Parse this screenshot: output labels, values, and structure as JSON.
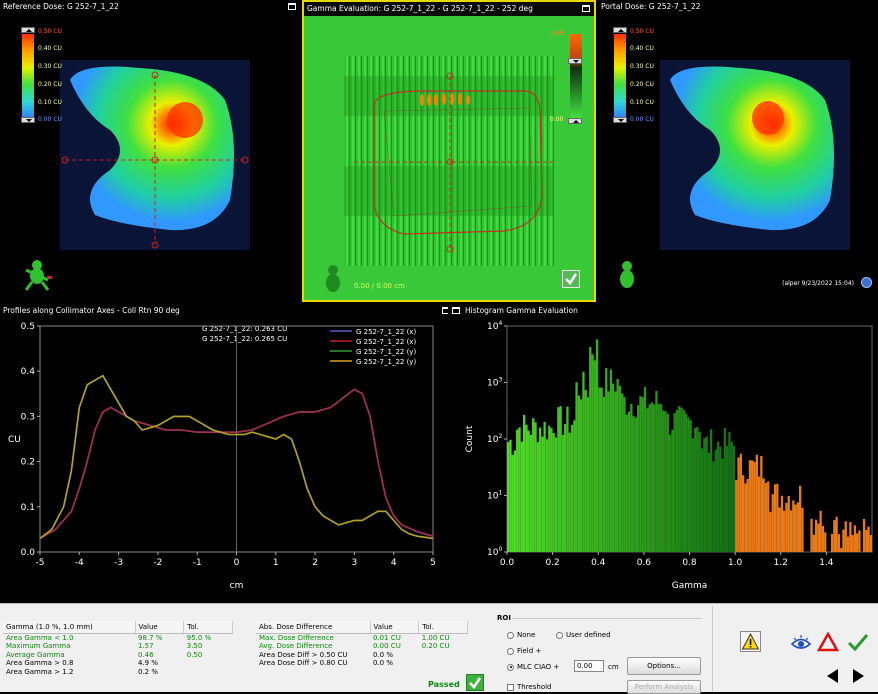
{
  "panels": {
    "reference": {
      "title": "Reference Dose: G 252-7_1_22",
      "cbar_labels": [
        "0.50 CU",
        "0.40 CU",
        "0.30 CU",
        "0.20 CU",
        "0.10 CU",
        "0.00 CU"
      ]
    },
    "gamma": {
      "title": "Gamma Evaluation: G 252-7_1_22 - G 252-7_1_22 - 252 deg",
      "cbar_top": "1.00",
      "cbar_bottom": "0.00",
      "coords": "0.00 / 0.00 cm"
    },
    "portal": {
      "title": "Portal Dose: G 252-7_1_22",
      "cbar_labels": [
        "0.50 CU",
        "0.40 CU",
        "0.30 CU",
        "0.20 CU",
        "0.10 CU",
        "0.00 CU"
      ],
      "footer": "(alper 9/23/2022 15:04)"
    },
    "profiles": {
      "title": "Profiles along Collimator Axes - Coll Rtn 90 deg"
    },
    "histogram": {
      "title": "Histogram Gamma Evaluation"
    }
  },
  "profile_readout": [
    "G 252-7_1_22: 0.263 CU",
    "G 252-7_1_22: 0.265 CU"
  ],
  "chart_data": [
    {
      "type": "line",
      "xlabel": "cm",
      "ylabel": "CU",
      "xlim": [
        -5,
        5
      ],
      "ylim": [
        0,
        0.5
      ],
      "x_ticks": [
        -5,
        -4,
        -3,
        -2,
        -1,
        0,
        1,
        2,
        3,
        4,
        5
      ],
      "y_ticks": [
        0.0,
        0.1,
        0.2,
        0.3,
        0.4,
        0.5
      ],
      "legend": "top-right",
      "series": [
        {
          "name": "G 252-7_1_22 (x)",
          "color": "#5a5ac8",
          "x": [
            -5,
            -4.6,
            -4.2,
            -4.0,
            -3.8,
            -3.6,
            -3.4,
            -3.2,
            -3.0,
            -2.6,
            -2.2,
            -1.8,
            -1.4,
            -1.0,
            -0.6,
            -0.2,
            0,
            0.4,
            0.8,
            1.2,
            1.6,
            2.0,
            2.4,
            2.7,
            3.0,
            3.2,
            3.4,
            3.6,
            3.8,
            4.0,
            4.2,
            4.6,
            5.0
          ],
          "y": [
            0.03,
            0.05,
            0.09,
            0.14,
            0.2,
            0.27,
            0.31,
            0.32,
            0.31,
            0.29,
            0.28,
            0.27,
            0.27,
            0.265,
            0.265,
            0.265,
            0.265,
            0.27,
            0.285,
            0.3,
            0.31,
            0.31,
            0.32,
            0.34,
            0.36,
            0.35,
            0.3,
            0.2,
            0.12,
            0.08,
            0.06,
            0.045,
            0.035
          ]
        },
        {
          "name": "G 252-7_1_22 (x)",
          "color": "#c02020",
          "x": [
            -5,
            -4.6,
            -4.2,
            -4.0,
            -3.8,
            -3.6,
            -3.4,
            -3.2,
            -3.0,
            -2.6,
            -2.2,
            -1.8,
            -1.4,
            -1.0,
            -0.6,
            -0.2,
            0,
            0.4,
            0.8,
            1.2,
            1.6,
            2.0,
            2.4,
            2.7,
            3.0,
            3.2,
            3.4,
            3.6,
            3.8,
            4.0,
            4.2,
            4.6,
            5.0
          ],
          "y": [
            0.03,
            0.05,
            0.09,
            0.14,
            0.2,
            0.27,
            0.31,
            0.32,
            0.31,
            0.29,
            0.28,
            0.27,
            0.27,
            0.265,
            0.265,
            0.265,
            0.265,
            0.27,
            0.285,
            0.3,
            0.31,
            0.31,
            0.32,
            0.34,
            0.36,
            0.35,
            0.3,
            0.2,
            0.12,
            0.08,
            0.06,
            0.045,
            0.035
          ]
        },
        {
          "name": "G 252-7_1_22 (y)",
          "color": "#3a9a3a",
          "x": [
            -5,
            -4.7,
            -4.4,
            -4.2,
            -4.0,
            -3.8,
            -3.6,
            -3.4,
            -3.2,
            -3.0,
            -2.8,
            -2.6,
            -2.4,
            -2.2,
            -2.0,
            -1.8,
            -1.6,
            -1.4,
            -1.2,
            -1.0,
            -0.8,
            -0.6,
            -0.4,
            -0.2,
            0,
            0.2,
            0.4,
            0.6,
            0.8,
            1.0,
            1.2,
            1.4,
            1.6,
            1.8,
            2.0,
            2.2,
            2.4,
            2.6,
            2.8,
            3.0,
            3.2,
            3.4,
            3.6,
            3.8,
            4.0,
            4.2,
            4.4,
            4.6,
            5.0
          ],
          "y": [
            0.03,
            0.05,
            0.1,
            0.18,
            0.32,
            0.37,
            0.38,
            0.39,
            0.36,
            0.33,
            0.3,
            0.29,
            0.27,
            0.275,
            0.28,
            0.29,
            0.3,
            0.3,
            0.3,
            0.29,
            0.28,
            0.27,
            0.265,
            0.26,
            0.26,
            0.26,
            0.265,
            0.26,
            0.255,
            0.25,
            0.26,
            0.25,
            0.2,
            0.14,
            0.1,
            0.08,
            0.07,
            0.06,
            0.065,
            0.07,
            0.07,
            0.08,
            0.09,
            0.09,
            0.07,
            0.05,
            0.04,
            0.035,
            0.03
          ]
        },
        {
          "name": "G 252-7_1_22 (y)",
          "color": "#e0a020",
          "x": [
            -5,
            -4.7,
            -4.4,
            -4.2,
            -4.0,
            -3.8,
            -3.6,
            -3.4,
            -3.2,
            -3.0,
            -2.8,
            -2.6,
            -2.4,
            -2.2,
            -2.0,
            -1.8,
            -1.6,
            -1.4,
            -1.2,
            -1.0,
            -0.8,
            -0.6,
            -0.4,
            -0.2,
            0,
            0.2,
            0.4,
            0.6,
            0.8,
            1.0,
            1.2,
            1.4,
            1.6,
            1.8,
            2.0,
            2.2,
            2.4,
            2.6,
            2.8,
            3.0,
            3.2,
            3.4,
            3.6,
            3.8,
            4.0,
            4.2,
            4.4,
            4.6,
            5.0
          ],
          "y": [
            0.03,
            0.05,
            0.1,
            0.18,
            0.32,
            0.37,
            0.38,
            0.39,
            0.36,
            0.33,
            0.3,
            0.29,
            0.27,
            0.275,
            0.28,
            0.29,
            0.3,
            0.3,
            0.3,
            0.29,
            0.28,
            0.27,
            0.265,
            0.26,
            0.26,
            0.26,
            0.265,
            0.26,
            0.255,
            0.25,
            0.26,
            0.25,
            0.2,
            0.14,
            0.1,
            0.08,
            0.07,
            0.06,
            0.065,
            0.07,
            0.07,
            0.08,
            0.09,
            0.09,
            0.07,
            0.05,
            0.04,
            0.035,
            0.03
          ]
        }
      ]
    },
    {
      "type": "bar",
      "xlabel": "Gamma",
      "ylabel": "Count",
      "xlim": [
        0,
        1.6
      ],
      "ylim_log10": [
        0,
        4
      ],
      "y_scale": "log",
      "x_ticks": [
        0.0,
        0.2,
        0.4,
        0.6,
        0.8,
        1.0,
        1.2,
        1.4
      ],
      "y_ticks": [
        "10^0",
        "10^1",
        "10^2",
        "10^3",
        "10^4"
      ],
      "bin_width": 0.01,
      "counts_log10_by_region": [
        {
          "from": 0.0,
          "to": 0.04,
          "log10": 1.95
        },
        {
          "from": 0.04,
          "to": 0.2,
          "log10": 2.2
        },
        {
          "from": 0.2,
          "to": 0.3,
          "log10": 2.3
        },
        {
          "from": 0.3,
          "to": 0.36,
          "log10": 2.9
        },
        {
          "from": 0.36,
          "to": 0.4,
          "log10": 3.6
        },
        {
          "from": 0.4,
          "to": 0.5,
          "log10": 3.0
        },
        {
          "from": 0.5,
          "to": 0.7,
          "log10": 2.65
        },
        {
          "from": 0.7,
          "to": 0.85,
          "log10": 2.3
        },
        {
          "from": 0.85,
          "to": 1.0,
          "log10": 1.9
        },
        {
          "from": 1.0,
          "to": 1.15,
          "log10": 1.5
        },
        {
          "from": 1.15,
          "to": 1.3,
          "log10": 1.0
        },
        {
          "from": 1.3,
          "to": 1.45,
          "log10": 0.6
        },
        {
          "from": 1.45,
          "to": 1.6,
          "log10": 0.3
        }
      ]
    }
  ],
  "gamma_table": {
    "headers": [
      "Gamma (1.0 %, 1.0 mm)",
      "Value",
      "Tol."
    ],
    "rows": [
      [
        "Area Gamma < 1.0",
        "98.7 %",
        "95.0 %"
      ],
      [
        "Maximum Gamma",
        "1.57",
        "3.50"
      ],
      [
        "Average Gamma",
        "0.46",
        "0.50"
      ],
      [
        "Area Gamma > 0.8",
        "4.9 %",
        ""
      ],
      [
        "Area Gamma > 1.2",
        "0.2 %",
        ""
      ]
    ]
  },
  "dose_table": {
    "headers": [
      "Abs. Dose Difference",
      "Value",
      "Tol."
    ],
    "rows": [
      [
        "Max. Dose Difference",
        "0.01 CU",
        "1.00 CU"
      ],
      [
        "Avg. Dose Difference",
        "0.00 CU",
        "0.20 CU"
      ],
      [
        "Area Dose Diff > 0.50 CU",
        "0.0 %",
        ""
      ],
      [
        "Area Dose Diff > 0.80 CU",
        "0.0 %",
        ""
      ]
    ]
  },
  "status": {
    "label": "Passed"
  },
  "roi": {
    "title": "ROI",
    "none": "None",
    "user_defined": "User defined",
    "field": "Field",
    "mlc": "MLC CIAO",
    "margin_value": "0.00",
    "unit": "cm",
    "threshold": "Threshold",
    "options": "Options...",
    "perform": "Perform Analysis"
  },
  "colors": {
    "accent_yellow": "#e8d800",
    "passed_green": "#22aa22",
    "alert_red": "#dd1111"
  }
}
